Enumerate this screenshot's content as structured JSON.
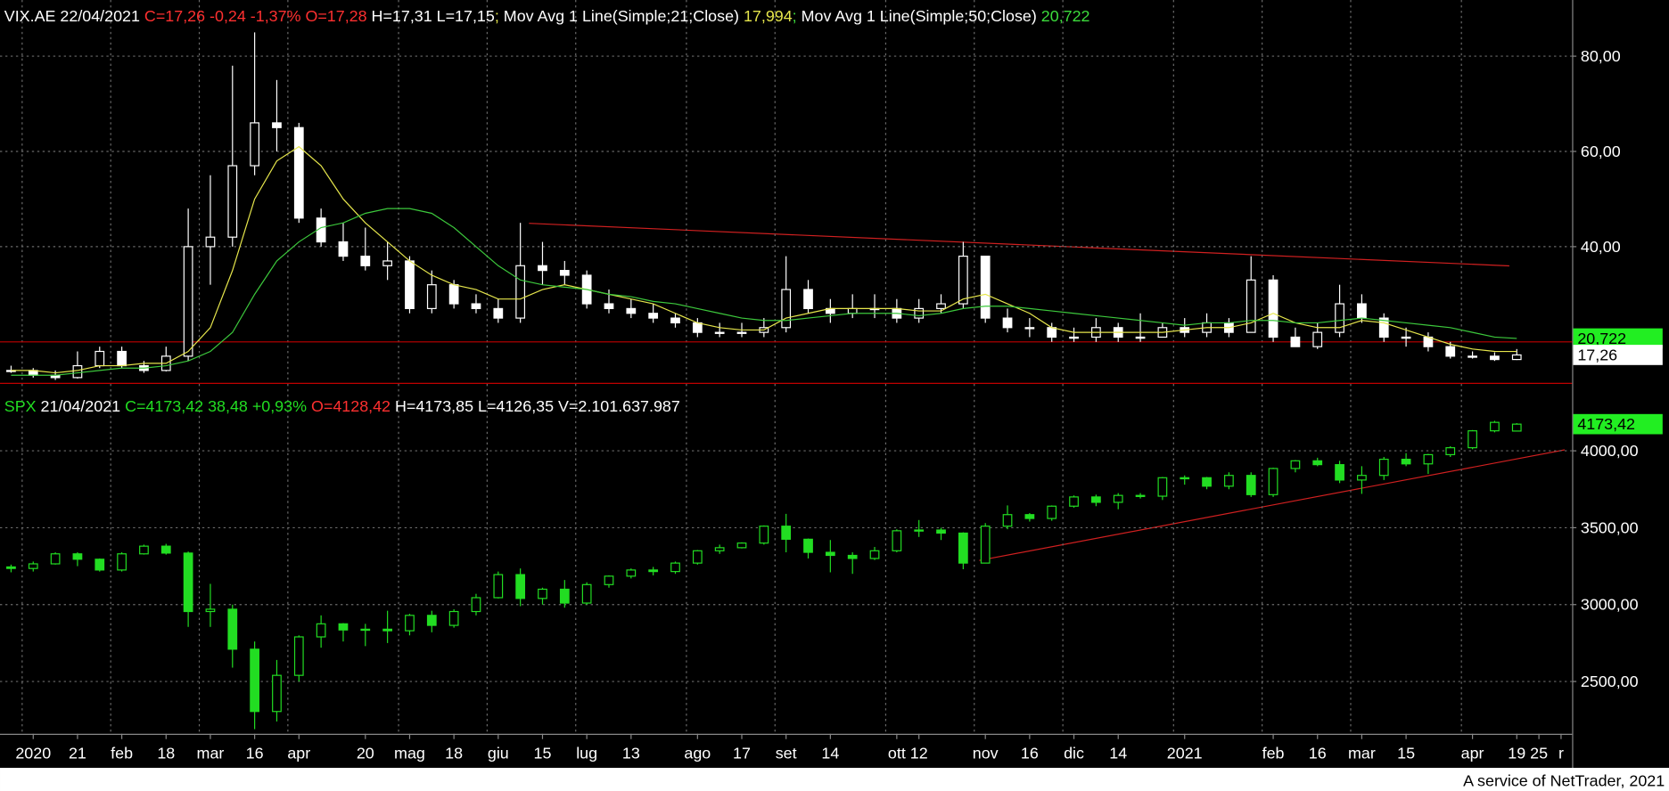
{
  "chart_data": [
    {
      "type": "candlestick",
      "header": [
        {
          "text": "VIX.AE 22/04/2021 ",
          "color": "#ffffff"
        },
        {
          "text": "C=17,26 -0,24 -1,37% O=17,28 ",
          "color": "#ff3030"
        },
        {
          "text": "H=17,31 L=17,15",
          "color": "#ffffff"
        },
        {
          "text": "; ",
          "color": "#e6e64c"
        },
        {
          "text": "Mov Avg 1 Line(Simple;21;Close) ",
          "color": "#ffffff"
        },
        {
          "text": "17,994",
          "color": "#e6e64c"
        },
        {
          "text": "; ",
          "color": "#3cdc3c"
        },
        {
          "text": "Mov Avg 1 Line(Simple;50;Close) ",
          "color": "#ffffff"
        },
        {
          "text": "20,722",
          "color": "#3cdc3c"
        }
      ],
      "color": "#ffffff",
      "open": [
        13.8,
        14,
        13,
        12.5,
        15,
        18,
        15,
        14,
        17,
        40,
        42,
        57,
        66,
        65,
        46,
        41,
        38,
        36,
        37,
        27,
        32,
        28,
        27,
        25,
        36,
        35,
        34,
        28,
        27,
        26,
        25,
        24,
        22,
        22,
        22,
        23,
        31,
        27,
        26,
        27,
        27,
        25,
        27,
        28,
        38,
        25,
        23,
        23,
        21,
        21,
        23,
        21,
        21,
        23,
        22,
        24,
        22,
        33,
        21,
        19,
        22,
        28,
        25,
        21,
        21,
        19,
        17,
        17,
        16.3,
        null,
        null
      ],
      "high": [
        15,
        14.5,
        14,
        18,
        19,
        19,
        16,
        19,
        48,
        55,
        78,
        85,
        75,
        66,
        48,
        45,
        44,
        41,
        38,
        35,
        33,
        30,
        29,
        45,
        41,
        37,
        35,
        31,
        29,
        28,
        26,
        25,
        24,
        24,
        25,
        38,
        33,
        29,
        30,
        30,
        29,
        29,
        30,
        41,
        38,
        27,
        25,
        24,
        23,
        25,
        24,
        26,
        24,
        25,
        26,
        25,
        38,
        34,
        23,
        24,
        32,
        30,
        26,
        23,
        22,
        20,
        18,
        17.8,
        18.5,
        null,
        null
      ],
      "low": [
        13.5,
        12.5,
        12,
        12.3,
        14.5,
        14.5,
        13.5,
        13.8,
        16,
        32,
        40,
        55,
        60,
        45,
        40,
        37,
        35,
        33,
        26,
        26,
        27,
        26,
        24,
        24,
        32,
        32,
        27,
        26,
        25,
        24,
        23,
        21,
        21,
        21,
        21,
        22,
        26,
        24,
        25,
        25,
        24,
        24,
        26,
        27,
        24,
        22,
        21,
        20,
        20,
        20,
        20,
        20,
        21,
        21,
        21,
        21,
        22,
        20,
        19,
        18.5,
        21,
        24,
        20,
        19,
        18,
        16.5,
        16.5,
        16,
        16.2,
        null,
        null
      ],
      "close": [
        14,
        13,
        12.5,
        15,
        18,
        15,
        14,
        17,
        40,
        42,
        57,
        66,
        65,
        46,
        41,
        38,
        36,
        37,
        27,
        32,
        28,
        27,
        25,
        36,
        35,
        34,
        28,
        27,
        26,
        25,
        24,
        22,
        22,
        22,
        23,
        31,
        27,
        26,
        27,
        27,
        25,
        27,
        28,
        38,
        25,
        23,
        23,
        21,
        21,
        23,
        21,
        21,
        23,
        22,
        24,
        22,
        33,
        21,
        19,
        22,
        28,
        25,
        21,
        21,
        19,
        17,
        17,
        16.3,
        17.26,
        null,
        null
      ],
      "close_label": "17,26",
      "close_label_box": "#ffffff",
      "series": [
        {
          "type": "line",
          "color": "#e6e64c",
          "values": [
            14,
            14,
            13.5,
            14,
            15,
            15,
            15.5,
            15.5,
            18,
            23,
            35,
            50,
            58,
            61,
            57,
            50,
            45,
            41,
            37,
            34,
            32,
            31,
            29,
            29,
            31,
            32,
            31,
            30,
            29,
            28,
            26,
            24,
            23,
            22.5,
            22.5,
            25,
            26,
            27,
            27,
            27,
            27,
            26.5,
            26.5,
            29,
            30,
            28,
            26,
            23,
            22,
            22,
            22,
            22,
            22,
            22.5,
            23,
            23,
            24,
            26,
            24,
            23,
            23,
            24.5,
            24,
            22.5,
            21,
            19.5,
            18.5,
            18,
            17.994,
            null,
            null
          ]
        },
        {
          "type": "line",
          "color": "#3cc83c",
          "values": [
            13,
            13,
            13,
            13.5,
            14,
            14.5,
            14.5,
            15,
            16,
            18,
            22,
            30,
            37,
            41,
            44,
            45,
            47,
            48,
            48,
            47,
            44,
            40,
            36,
            33,
            32,
            31.5,
            31,
            30,
            29.5,
            28.5,
            28,
            27,
            26,
            25,
            24.5,
            24.5,
            25,
            25.5,
            26,
            26,
            26,
            25.5,
            26,
            27,
            27.5,
            27.5,
            27,
            26.5,
            26,
            25.5,
            25,
            24.5,
            24,
            23.5,
            24,
            24,
            24.5,
            24.5,
            24,
            24,
            24.5,
            25,
            24.5,
            24,
            23.5,
            23,
            22,
            21,
            20.722,
            null,
            null
          ],
          "last_label": "20,722",
          "last_label_box": "#22ee22"
        }
      ],
      "hline": 20,
      "hline_color": "#c00000",
      "ylim": [
        11.4,
        91.8
      ],
      "yticks": [
        {
          "value": 40,
          "label": "40,00"
        },
        {
          "value": 60,
          "label": "60,00"
        },
        {
          "value": 80,
          "label": "80,00"
        }
      ],
      "grid": true
    },
    {
      "type": "candlestick",
      "header": [
        {
          "text": "SPX",
          "color": "#22dd22"
        },
        {
          "text": " 21/04/2021 ",
          "color": "#ffffff"
        },
        {
          "text": "C=4173,42 38,48 +0,93%",
          "color": "#22dd22"
        },
        {
          "text": " O=4128,42",
          "color": "#ff3030"
        },
        {
          "text": " H=4173,85 L=4126,35 V=2.101.637.987",
          "color": "#ffffff"
        }
      ],
      "color": "#22dd22",
      "open": [
        3245,
        3235,
        3265,
        3330,
        3295,
        3225,
        3330,
        3380,
        3335,
        2955,
        2970,
        2710,
        2305,
        2540,
        2790,
        2875,
        2835,
        2840,
        2830,
        2930,
        2865,
        2955,
        3045,
        3195,
        3040,
        3100,
        3010,
        3130,
        3185,
        3225,
        3215,
        3270,
        3350,
        3370,
        3400,
        3510,
        3425,
        3340,
        3320,
        3300,
        3350,
        3480,
        3485,
        3465,
        3270,
        3510,
        3585,
        3560,
        3640,
        3700,
        3665,
        3710,
        3705,
        3825,
        3825,
        3770,
        3840,
        3715,
        3885,
        3935,
        3910,
        3810,
        3840,
        3945,
        3915,
        3975,
        4020,
        4130,
        4128.42,
        null,
        null
      ],
      "high": [
        3260,
        3280,
        3340,
        3340,
        3300,
        3340,
        3390,
        3395,
        3345,
        3135,
        3000,
        2760,
        2640,
        2800,
        2930,
        2880,
        2875,
        2960,
        2940,
        2960,
        2970,
        3070,
        3215,
        3235,
        3110,
        3160,
        3145,
        3190,
        3235,
        3245,
        3280,
        3355,
        3390,
        3405,
        3515,
        3590,
        3430,
        3420,
        3340,
        3375,
        3490,
        3550,
        3500,
        3470,
        3530,
        3645,
        3595,
        3645,
        3710,
        3715,
        3725,
        3725,
        3830,
        3840,
        3830,
        3860,
        3860,
        3890,
        3940,
        3955,
        3935,
        3900,
        3960,
        3985,
        3980,
        4030,
        4135,
        4195,
        4180,
        null,
        null
      ],
      "low": [
        3210,
        3215,
        3260,
        3250,
        3215,
        3215,
        3325,
        3325,
        2855,
        2855,
        2590,
        2190,
        2240,
        2500,
        2720,
        2760,
        2730,
        2750,
        2800,
        2820,
        2850,
        2930,
        3040,
        2990,
        3000,
        2980,
        3000,
        3110,
        3170,
        3190,
        3200,
        3260,
        3330,
        3365,
        3390,
        3340,
        3300,
        3210,
        3200,
        3290,
        3340,
        3440,
        3420,
        3230,
        3270,
        3490,
        3540,
        3545,
        3630,
        3640,
        3620,
        3690,
        3680,
        3780,
        3750,
        3750,
        3700,
        3700,
        3860,
        3900,
        3790,
        3720,
        3810,
        3900,
        3850,
        3960,
        4010,
        4120,
        4125,
        null,
        null
      ],
      "close": [
        3235,
        3265,
        3330,
        3295,
        3225,
        3330,
        3380,
        3335,
        2955,
        2970,
        2710,
        2305,
        2540,
        2790,
        2875,
        2835,
        2840,
        2830,
        2930,
        2865,
        2955,
        3045,
        3195,
        3040,
        3100,
        3010,
        3130,
        3185,
        3225,
        3215,
        3270,
        3350,
        3370,
        3400,
        3510,
        3425,
        3340,
        3320,
        3300,
        3350,
        3480,
        3485,
        3465,
        3270,
        3510,
        3585,
        3560,
        3640,
        3700,
        3665,
        3710,
        3705,
        3825,
        3825,
        3770,
        3840,
        3715,
        3885,
        3935,
        3910,
        3810,
        3840,
        3945,
        3915,
        3975,
        4020,
        4130,
        4185,
        4173.42,
        null,
        null
      ],
      "close_label": "4173,42",
      "close_label_box": "#22ee22",
      "series": [],
      "ylim": [
        2160,
        4435
      ],
      "yticks": [
        {
          "value": 2500,
          "label": "2500,00"
        },
        {
          "value": 3000,
          "label": "3000,00"
        },
        {
          "value": 3500,
          "label": "3500,00"
        },
        {
          "value": 4000,
          "label": "4000,00"
        }
      ],
      "grid": true,
      "categories": [
        null,
        "2020",
        null,
        "21",
        null,
        "feb",
        null,
        "18",
        null,
        "mar",
        null,
        "16",
        null,
        "apr",
        null,
        null,
        "20",
        null,
        "mag",
        null,
        "18",
        null,
        "giu",
        null,
        "15",
        null,
        "lug",
        null,
        "13",
        null,
        null,
        "ago",
        null,
        "17",
        null,
        "set",
        null,
        "14",
        null,
        null,
        "ott",
        "12",
        null,
        null,
        "nov",
        null,
        "16",
        null,
        "dic",
        null,
        "14",
        null,
        null,
        "2021",
        null,
        null,
        null,
        "feb",
        null,
        "16",
        null,
        "mar",
        null,
        "15",
        null,
        null,
        "apr",
        null,
        "19",
        "25",
        "r"
      ]
    }
  ],
  "footer": "A service of NetTrader, 2021"
}
